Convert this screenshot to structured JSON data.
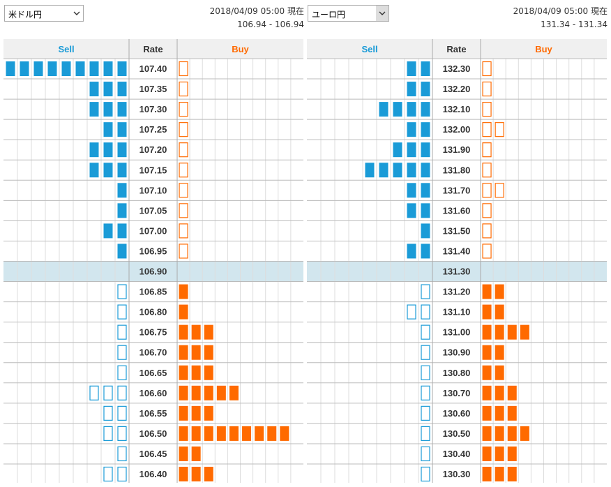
{
  "colors": {
    "sell": "#1a9bd7",
    "buy": "#ff6a00",
    "current_row": "#d2e6ee",
    "header_bg": "#f0f0f0",
    "grid": "#c8c8c8"
  },
  "icons": {
    "dropdown": "chevron-down-icon"
  },
  "panels": [
    {
      "pair": "米ドル円",
      "timestamp": "2018/04/09 05:00 現在",
      "range": "106.94 - 106.94",
      "chart_data": {
        "type": "table",
        "headers": {
          "sell": "Sell",
          "rate": "Rate",
          "buy": "Buy"
        },
        "current_rate": "106.90",
        "rows": [
          {
            "rate": "107.40",
            "sell": 9,
            "sell_outline": 0,
            "buy": 0,
            "buy_outline": 1
          },
          {
            "rate": "107.35",
            "sell": 3,
            "sell_outline": 0,
            "buy": 0,
            "buy_outline": 1
          },
          {
            "rate": "107.30",
            "sell": 3,
            "sell_outline": 0,
            "buy": 0,
            "buy_outline": 1
          },
          {
            "rate": "107.25",
            "sell": 2,
            "sell_outline": 0,
            "buy": 0,
            "buy_outline": 1
          },
          {
            "rate": "107.20",
            "sell": 3,
            "sell_outline": 0,
            "buy": 0,
            "buy_outline": 1
          },
          {
            "rate": "107.15",
            "sell": 3,
            "sell_outline": 0,
            "buy": 0,
            "buy_outline": 1
          },
          {
            "rate": "107.10",
            "sell": 1,
            "sell_outline": 0,
            "buy": 0,
            "buy_outline": 1
          },
          {
            "rate": "107.05",
            "sell": 1,
            "sell_outline": 0,
            "buy": 0,
            "buy_outline": 1
          },
          {
            "rate": "107.00",
            "sell": 2,
            "sell_outline": 0,
            "buy": 0,
            "buy_outline": 1
          },
          {
            "rate": "106.95",
            "sell": 1,
            "sell_outline": 0,
            "buy": 0,
            "buy_outline": 1
          },
          {
            "rate": "106.90",
            "sell": 0,
            "sell_outline": 0,
            "buy": 0,
            "buy_outline": 0
          },
          {
            "rate": "106.85",
            "sell": 0,
            "sell_outline": 1,
            "buy": 1,
            "buy_outline": 0
          },
          {
            "rate": "106.80",
            "sell": 0,
            "sell_outline": 1,
            "buy": 1,
            "buy_outline": 0
          },
          {
            "rate": "106.75",
            "sell": 0,
            "sell_outline": 1,
            "buy": 3,
            "buy_outline": 0
          },
          {
            "rate": "106.70",
            "sell": 0,
            "sell_outline": 1,
            "buy": 3,
            "buy_outline": 0
          },
          {
            "rate": "106.65",
            "sell": 0,
            "sell_outline": 1,
            "buy": 3,
            "buy_outline": 0
          },
          {
            "rate": "106.60",
            "sell": 0,
            "sell_outline": 3,
            "buy": 5,
            "buy_outline": 0
          },
          {
            "rate": "106.55",
            "sell": 0,
            "sell_outline": 2,
            "buy": 3,
            "buy_outline": 0
          },
          {
            "rate": "106.50",
            "sell": 0,
            "sell_outline": 2,
            "buy": 9,
            "buy_outline": 0
          },
          {
            "rate": "106.45",
            "sell": 0,
            "sell_outline": 1,
            "buy": 2,
            "buy_outline": 0
          },
          {
            "rate": "106.40",
            "sell": 0,
            "sell_outline": 2,
            "buy": 3,
            "buy_outline": 0
          }
        ]
      }
    },
    {
      "pair": "ユーロ円",
      "timestamp": "2018/04/09 05:00 現在",
      "range": "131.34 - 131.34",
      "chart_data": {
        "type": "table",
        "headers": {
          "sell": "Sell",
          "rate": "Rate",
          "buy": "Buy"
        },
        "current_rate": "131.30",
        "rows": [
          {
            "rate": "132.30",
            "sell": 2,
            "sell_outline": 0,
            "buy": 0,
            "buy_outline": 1
          },
          {
            "rate": "132.20",
            "sell": 2,
            "sell_outline": 0,
            "buy": 0,
            "buy_outline": 1
          },
          {
            "rate": "132.10",
            "sell": 4,
            "sell_outline": 0,
            "buy": 0,
            "buy_outline": 1
          },
          {
            "rate": "132.00",
            "sell": 2,
            "sell_outline": 0,
            "buy": 0,
            "buy_outline": 2
          },
          {
            "rate": "131.90",
            "sell": 3,
            "sell_outline": 0,
            "buy": 0,
            "buy_outline": 1
          },
          {
            "rate": "131.80",
            "sell": 5,
            "sell_outline": 0,
            "buy": 0,
            "buy_outline": 1
          },
          {
            "rate": "131.70",
            "sell": 2,
            "sell_outline": 0,
            "buy": 0,
            "buy_outline": 2
          },
          {
            "rate": "131.60",
            "sell": 2,
            "sell_outline": 0,
            "buy": 0,
            "buy_outline": 1
          },
          {
            "rate": "131.50",
            "sell": 1,
            "sell_outline": 0,
            "buy": 0,
            "buy_outline": 1
          },
          {
            "rate": "131.40",
            "sell": 2,
            "sell_outline": 0,
            "buy": 0,
            "buy_outline": 1
          },
          {
            "rate": "131.30",
            "sell": 0,
            "sell_outline": 0,
            "buy": 0,
            "buy_outline": 0
          },
          {
            "rate": "131.20",
            "sell": 0,
            "sell_outline": 1,
            "buy": 2,
            "buy_outline": 0
          },
          {
            "rate": "131.10",
            "sell": 0,
            "sell_outline": 2,
            "buy": 2,
            "buy_outline": 0
          },
          {
            "rate": "131.00",
            "sell": 0,
            "sell_outline": 1,
            "buy": 4,
            "buy_outline": 0
          },
          {
            "rate": "130.90",
            "sell": 0,
            "sell_outline": 1,
            "buy": 2,
            "buy_outline": 0
          },
          {
            "rate": "130.80",
            "sell": 0,
            "sell_outline": 1,
            "buy": 2,
            "buy_outline": 0
          },
          {
            "rate": "130.70",
            "sell": 0,
            "sell_outline": 1,
            "buy": 3,
            "buy_outline": 0
          },
          {
            "rate": "130.60",
            "sell": 0,
            "sell_outline": 1,
            "buy": 3,
            "buy_outline": 0
          },
          {
            "rate": "130.50",
            "sell": 0,
            "sell_outline": 1,
            "buy": 4,
            "buy_outline": 0
          },
          {
            "rate": "130.40",
            "sell": 0,
            "sell_outline": 1,
            "buy": 3,
            "buy_outline": 0
          },
          {
            "rate": "130.30",
            "sell": 0,
            "sell_outline": 1,
            "buy": 3,
            "buy_outline": 0
          }
        ]
      }
    }
  ]
}
